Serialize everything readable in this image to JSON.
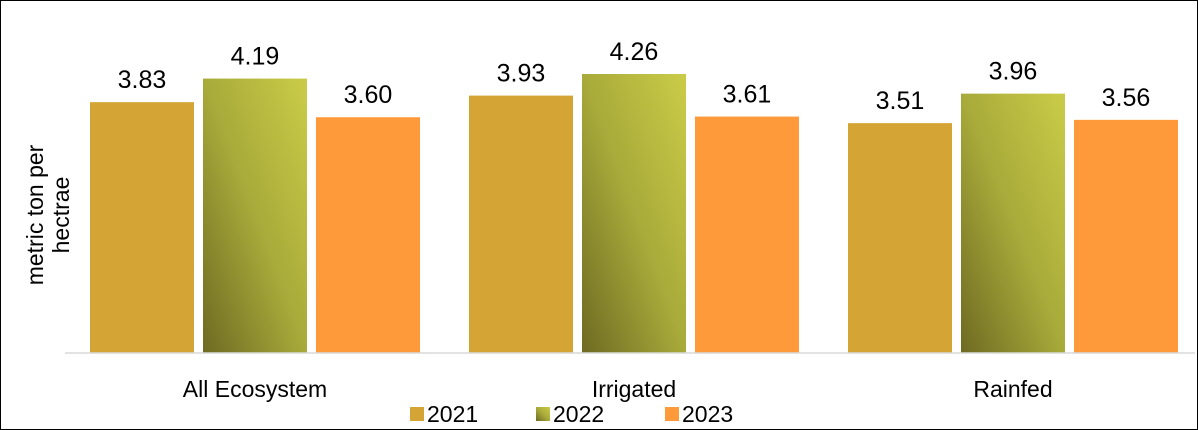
{
  "chart_data": {
    "type": "bar",
    "title": "",
    "ylabel_lines": [
      "metric ton per",
      "hectrae"
    ],
    "xlabel": "",
    "categories": [
      "All Ecosystem",
      "Irrigated",
      "Rainfed"
    ],
    "series": [
      {
        "name": "2021",
        "values": [
          3.83,
          3.93,
          3.51
        ],
        "color": "#D4A535",
        "labels": [
          "3.83",
          "3.93",
          "3.51"
        ]
      },
      {
        "name": "2022",
        "values": [
          4.19,
          4.26,
          3.96
        ],
        "color": "#A8AA3A",
        "color_dark": "#6E6A22",
        "color_light": "#CACC48",
        "labels": [
          "4.19",
          "4.26",
          "3.96"
        ]
      },
      {
        "name": "2023",
        "values": [
          3.6,
          3.61,
          3.56
        ],
        "color": "#FF9A3A",
        "labels": [
          "3.60",
          "3.61",
          "3.56"
        ]
      }
    ],
    "ylim": [
      0,
      4.26
    ],
    "grid": false,
    "legend_position": "bottom"
  }
}
